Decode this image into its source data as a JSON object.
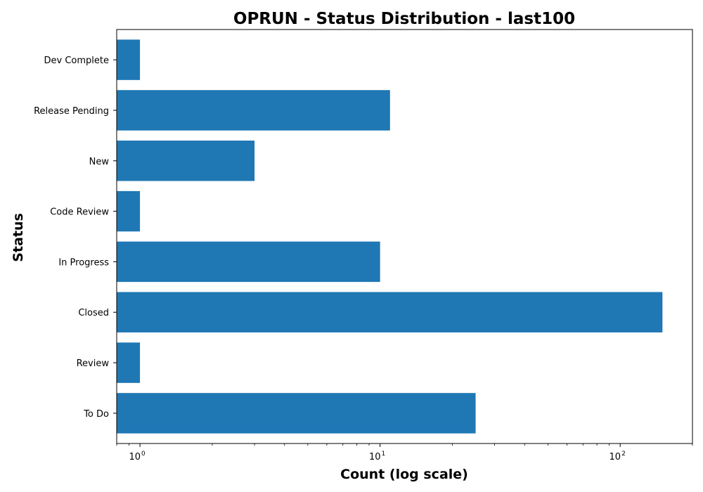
{
  "chart_data": {
    "type": "bar",
    "orientation": "horizontal",
    "title": "OPRUN - Status Distribution - last100",
    "xlabel": "Count (log scale)",
    "ylabel": "Status",
    "xscale": "log",
    "xlim": [
      0.8,
      200
    ],
    "x_ticks": [
      {
        "value": 1,
        "base": "10",
        "exp": "0"
      },
      {
        "value": 10,
        "base": "10",
        "exp": "1"
      },
      {
        "value": 100,
        "base": "10",
        "exp": "2"
      }
    ],
    "categories": [
      "To Do",
      "Review",
      "Closed",
      "In Progress",
      "Code Review",
      "New",
      "Release Pending",
      "Dev Complete"
    ],
    "values": [
      25,
      1,
      150,
      10,
      1,
      3,
      11,
      1
    ],
    "bar_color": "#1f77b4",
    "grid": false,
    "legend": "none"
  }
}
